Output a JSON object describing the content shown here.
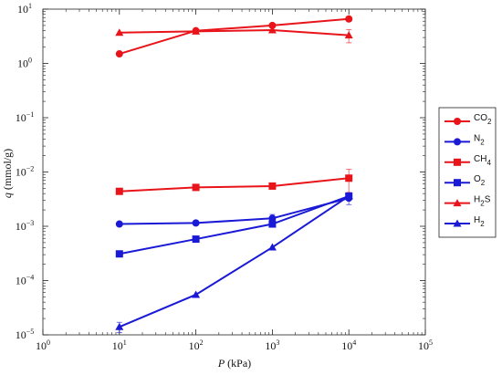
{
  "chart_data": {
    "type": "line",
    "xlabel": "P (kPa)",
    "ylabel": "q (mmol/g)",
    "x_scale": "log",
    "y_scale": "log",
    "xlim": [
      1,
      100000
    ],
    "ylim": [
      1e-05,
      10
    ],
    "x_ticks": [
      {
        "value": 1,
        "mantissa": "10",
        "exponent": "0"
      },
      {
        "value": 10,
        "mantissa": "10",
        "exponent": "1"
      },
      {
        "value": 100,
        "mantissa": "10",
        "exponent": "2"
      },
      {
        "value": 1000,
        "mantissa": "10",
        "exponent": "3"
      },
      {
        "value": 10000,
        "mantissa": "10",
        "exponent": "4"
      },
      {
        "value": 100000,
        "mantissa": "10",
        "exponent": "5"
      }
    ],
    "y_ticks": [
      {
        "value": 1e-05,
        "mantissa": "10",
        "exponent": "−5"
      },
      {
        "value": 0.0001,
        "mantissa": "10",
        "exponent": "−4"
      },
      {
        "value": 0.001,
        "mantissa": "10",
        "exponent": "−3"
      },
      {
        "value": 0.01,
        "mantissa": "10",
        "exponent": "−2"
      },
      {
        "value": 0.1,
        "mantissa": "10",
        "exponent": "−1"
      },
      {
        "value": 1,
        "mantissa": "10",
        "exponent": "0"
      },
      {
        "value": 10,
        "mantissa": "10",
        "exponent": "1"
      }
    ],
    "grid": false,
    "legend_position": "right",
    "series": [
      {
        "name": "CO2",
        "label_main": "CO",
        "label_sub": "2",
        "color": "#e8141a",
        "marker": "circle",
        "x": [
          10,
          100,
          1000,
          10000
        ],
        "y": [
          1.5,
          4.0,
          5.0,
          6.6
        ],
        "err": [
          0,
          0,
          0,
          0
        ]
      },
      {
        "name": "N2",
        "label_main": "N",
        "label_sub": "2",
        "color": "#1a1ad6",
        "marker": "circle",
        "x": [
          10,
          100,
          1000,
          10000
        ],
        "y": [
          0.0011,
          0.00115,
          0.0014,
          0.0033
        ],
        "err": [
          0,
          0,
          0.00025,
          0.0008
        ]
      },
      {
        "name": "CH4",
        "label_main": "CH",
        "label_sub": "4",
        "color": "#e8141a",
        "marker": "square",
        "x": [
          10,
          100,
          1000,
          10000
        ],
        "y": [
          0.0044,
          0.0052,
          0.0055,
          0.0077
        ],
        "err": [
          0,
          0,
          0,
          0.0035
        ]
      },
      {
        "name": "O2",
        "label_main": "O",
        "label_sub": "2",
        "color": "#1a1ad6",
        "marker": "square",
        "x": [
          10,
          100,
          1000,
          10000
        ],
        "y": [
          0.00031,
          0.00058,
          0.0011,
          0.0036
        ],
        "err": [
          0,
          0,
          0,
          0
        ]
      },
      {
        "name": "H2S",
        "label_main": "H",
        "label_sub": "2",
        "label_suffix": "S",
        "color": "#e8141a",
        "marker": "triangle",
        "x": [
          10,
          100,
          1000,
          10000
        ],
        "y": [
          3.7,
          3.9,
          4.1,
          3.3
        ],
        "err": [
          0,
          0,
          0,
          0.9
        ]
      },
      {
        "name": "H2",
        "label_main": "H",
        "label_sub": "2",
        "color": "#1a1ad6",
        "marker": "triangle",
        "x": [
          10,
          100,
          1000,
          10000
        ],
        "y": [
          1.4e-05,
          5.5e-05,
          0.00041,
          0.0036
        ],
        "err": [
          3e-06,
          0,
          0,
          0
        ]
      }
    ]
  }
}
